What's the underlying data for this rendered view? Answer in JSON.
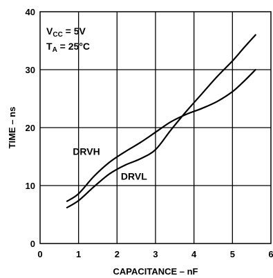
{
  "chart_data": {
    "type": "line",
    "xlabel": "CAPACITANCE – nF",
    "ylabel": "TIME – ns",
    "xlim": [
      0,
      6
    ],
    "ylim": [
      0,
      40
    ],
    "x_ticks": [
      "0",
      "1",
      "2",
      "3",
      "4",
      "5",
      "6"
    ],
    "y_ticks": [
      "0",
      "10",
      "20",
      "30",
      "40"
    ],
    "grid": true,
    "conditions": {
      "vcc_main": "V",
      "vcc_sub": "CC",
      "vcc_value": " = 5V",
      "ta_main": "T",
      "ta_sub": "A",
      "ta_value": " = 25°C"
    },
    "series": [
      {
        "name": "DRVH",
        "x": [
          0.7,
          1.0,
          1.4,
          1.8,
          2.2,
          2.6,
          3.0,
          3.4,
          3.8,
          4.2,
          4.6,
          5.0,
          5.3,
          5.6
        ],
        "y": [
          7.3,
          8.6,
          11.6,
          14.0,
          15.8,
          17.4,
          19.2,
          21.0,
          22.3,
          23.3,
          24.5,
          26.2,
          28.0,
          30.0
        ]
      },
      {
        "name": "DRVL",
        "x": [
          0.7,
          1.0,
          1.4,
          1.8,
          2.2,
          2.6,
          3.0,
          3.4,
          3.8,
          4.2,
          4.6,
          5.0,
          5.3,
          5.6
        ],
        "y": [
          6.2,
          7.4,
          9.8,
          12.0,
          13.5,
          14.6,
          16.2,
          19.6,
          22.8,
          25.8,
          28.8,
          31.5,
          33.8,
          36.0
        ]
      }
    ],
    "series_label_positions": [
      {
        "name": "DRVH",
        "x": 0.85,
        "y": 15.3
      },
      {
        "name": "DRVL",
        "x": 2.1,
        "y": 11.0
      }
    ]
  }
}
